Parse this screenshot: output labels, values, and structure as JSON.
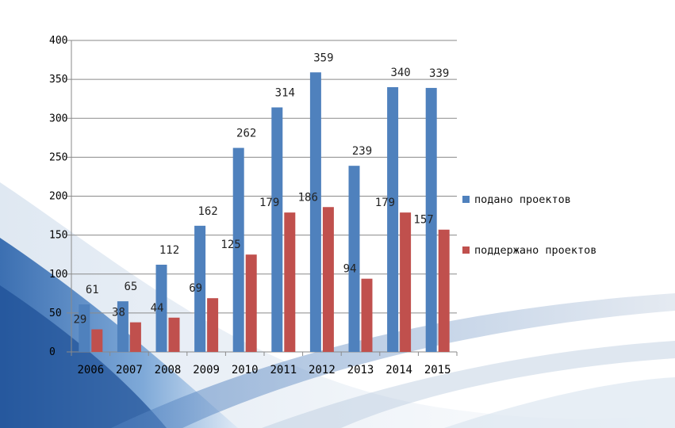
{
  "chart_data": {
    "type": "bar",
    "categories": [
      "2006",
      "2007",
      "2008",
      "2009",
      "2010",
      "2011",
      "2012",
      "2013",
      "2014",
      "2015"
    ],
    "series": [
      {
        "name": "подано проектов",
        "color": "#4f81bd",
        "values": [
          61,
          65,
          112,
          162,
          262,
          314,
          359,
          239,
          340,
          339
        ]
      },
      {
        "name": "поддержано проектов",
        "color": "#c0504d",
        "values": [
          29,
          38,
          44,
          69,
          125,
          179,
          186,
          94,
          179,
          157
        ]
      }
    ],
    "ylim": [
      0,
      400
    ],
    "yticks": [
      0,
      50,
      100,
      150,
      200,
      250,
      300,
      350,
      400
    ],
    "grid": true,
    "legend": "right",
    "title": "",
    "xlabel": "",
    "ylabel": ""
  }
}
